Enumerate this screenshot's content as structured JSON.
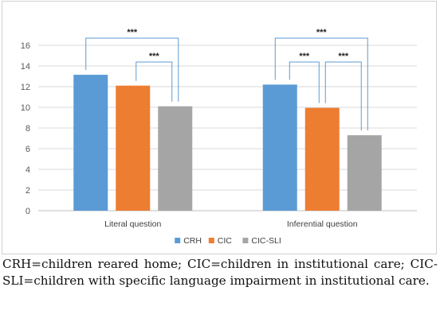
{
  "chart_data": {
    "type": "bar",
    "categories": [
      "Literal question",
      "Inferential question"
    ],
    "series": [
      {
        "name": "CRH",
        "color": "#5b9bd5",
        "values": [
          13.15,
          12.2
        ]
      },
      {
        "name": "CIC",
        "color": "#ed7d31",
        "values": [
          12.1,
          9.95
        ]
      },
      {
        "name": "CIC-SLI",
        "color": "#a5a5a5",
        "values": [
          10.1,
          7.3
        ]
      }
    ],
    "ylim": [
      0,
      16
    ],
    "yticks": [
      0,
      2,
      4,
      6,
      8,
      10,
      12,
      14,
      16
    ],
    "grid": true,
    "legend": "bottom",
    "bracket_color": "#5b9bd5",
    "annotations": [
      {
        "group": 0,
        "from": 0,
        "to": 2,
        "label": "***",
        "level": 2
      },
      {
        "group": 0,
        "from": 1,
        "to": 2,
        "label": "***",
        "level": 1
      },
      {
        "group": 1,
        "from": 0,
        "to": 2,
        "label": "***",
        "level": 2
      },
      {
        "group": 1,
        "from": 0,
        "to": 1,
        "label": "***",
        "level": 1
      },
      {
        "group": 1,
        "from": 1,
        "to": 2,
        "label": "***",
        "level": 1
      }
    ]
  },
  "caption": "CRH=children reared home; CIC=children in institutional care; CIC-SLI=children with specific language impairment in institutional care."
}
